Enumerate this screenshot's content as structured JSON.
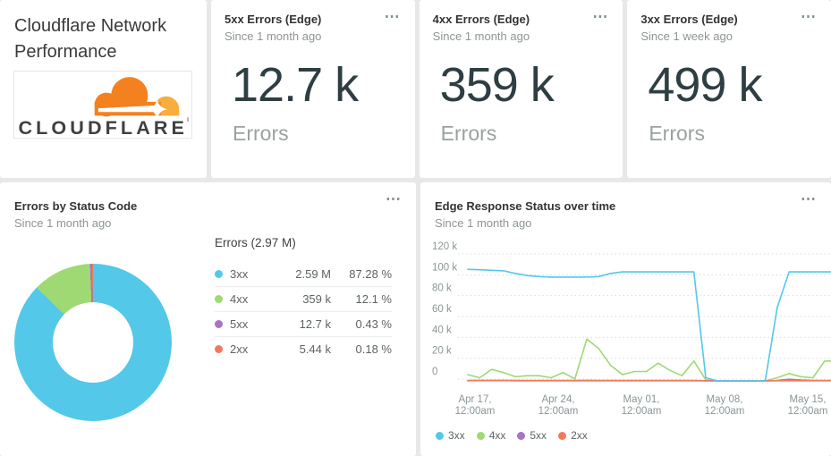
{
  "page_title": "Cloudflare Network Performance",
  "icons": {
    "card_menu": "⋯"
  },
  "logo": {
    "text": "CLOUDFLARE",
    "cloud_color": "#F48120",
    "cloud_light_color": "#FAAD3F",
    "text_color": "#404041"
  },
  "stat_cards": [
    {
      "title": "5xx Errors (Edge)",
      "subtitle": "Since 1 month ago",
      "value": "12.7 k",
      "unit": "Errors"
    },
    {
      "title": "4xx Errors (Edge)",
      "subtitle": "Since 1 month ago",
      "value": "359 k",
      "unit": "Errors"
    },
    {
      "title": "3xx Errors (Edge)",
      "subtitle": "Since 1 week ago",
      "value": "499 k",
      "unit": "Errors"
    }
  ],
  "chart_data": [
    {
      "type": "pie",
      "title": "Errors by Status Code",
      "subtitle": "Since 1 month ago",
      "total_label": "Errors (2.97 M)",
      "legend_position": "right",
      "slices": [
        {
          "label": "3xx",
          "value": "2.59 M",
          "percent": 87.28,
          "percent_label": "87.28 %",
          "color": "#53C8E9"
        },
        {
          "label": "4xx",
          "value": "359 k",
          "percent": 12.1,
          "percent_label": "12.1 %",
          "color": "#9FD973"
        },
        {
          "label": "5xx",
          "value": "12.7 k",
          "percent": 0.43,
          "percent_label": "0.43 %",
          "color": "#A873C8"
        },
        {
          "label": "2xx",
          "value": "5.44 k",
          "percent": 0.18,
          "percent_label": "0.18 %",
          "color": "#F2795C"
        }
      ]
    },
    {
      "type": "line",
      "title": "Edge Response Status over time",
      "subtitle": "Since 1 month ago",
      "ylabel": "",
      "unit": "k (thousands of responses per day)",
      "ylim": [
        0,
        120000
      ],
      "grid": "dotted horizontal gridlines",
      "x_start": "Apr 16",
      "x_interval": "1 day",
      "yticks": [
        {
          "v": 0,
          "label": "0"
        },
        {
          "v": 20,
          "label": "20 k"
        },
        {
          "v": 40,
          "label": "40 k"
        },
        {
          "v": 60,
          "label": "60 k"
        },
        {
          "v": 80,
          "label": "80 k"
        },
        {
          "v": 100,
          "label": "100 k"
        },
        {
          "v": 120,
          "label": "120 k"
        }
      ],
      "x_ticks": [
        {
          "line1": "Apr 17,",
          "line2": "12:00am"
        },
        {
          "line1": "Apr 24,",
          "line2": "12:00am"
        },
        {
          "line1": "May 01,",
          "line2": "12:00am"
        },
        {
          "line1": "May 08,",
          "line2": "12:00am"
        },
        {
          "line1": "May 15,",
          "line2": "12:00am"
        }
      ],
      "series": [
        {
          "name": "3xx",
          "color": "#53C8E9",
          "values": [
            107,
            106.5,
            106,
            105.5,
            103,
            101,
            100,
            99.5,
            99.5,
            99.5,
            99.5,
            100,
            103,
            104.5,
            104.5,
            104.5,
            104.5,
            104.5,
            104.5,
            104.5,
            3,
            0,
            0,
            0,
            0,
            0,
            70,
            104.5,
            104.5,
            104.5,
            104.5
          ]
        },
        {
          "name": "4xx",
          "color": "#9FD973",
          "values": [
            6,
            3,
            11,
            8,
            4,
            5,
            5,
            3,
            8,
            2,
            40,
            31,
            15,
            6,
            9,
            9,
            17,
            10,
            5,
            19,
            1,
            0,
            0,
            0,
            0,
            0,
            3,
            7,
            4,
            3,
            19
          ]
        },
        {
          "name": "5xx",
          "color": "#A873C8",
          "values": [
            0.3,
            0.3,
            0.3,
            0.3,
            0.3,
            0.3,
            0.3,
            0.3,
            0.3,
            0.3,
            0.5,
            0.4,
            0.3,
            0.3,
            0.3,
            0.3,
            0.3,
            0.3,
            0.3,
            0.3,
            0.2,
            0,
            0,
            0,
            0,
            0,
            0.3,
            1.5,
            0.8,
            0.3,
            0.3
          ]
        },
        {
          "name": "2xx",
          "color": "#F2795C",
          "values": [
            0.2,
            0.4,
            0.4,
            0.3,
            0.2,
            0.2,
            0.2,
            0.2,
            0.2,
            0.2,
            0.2,
            0.2,
            0.2,
            0.2,
            0.2,
            0.2,
            0.2,
            0.2,
            0.2,
            0.2,
            0.1,
            0,
            0,
            0,
            0,
            0,
            0.2,
            0.2,
            0.2,
            0.2,
            0.2
          ]
        }
      ],
      "legend": [
        "3xx",
        "4xx",
        "5xx",
        "2xx"
      ]
    }
  ]
}
